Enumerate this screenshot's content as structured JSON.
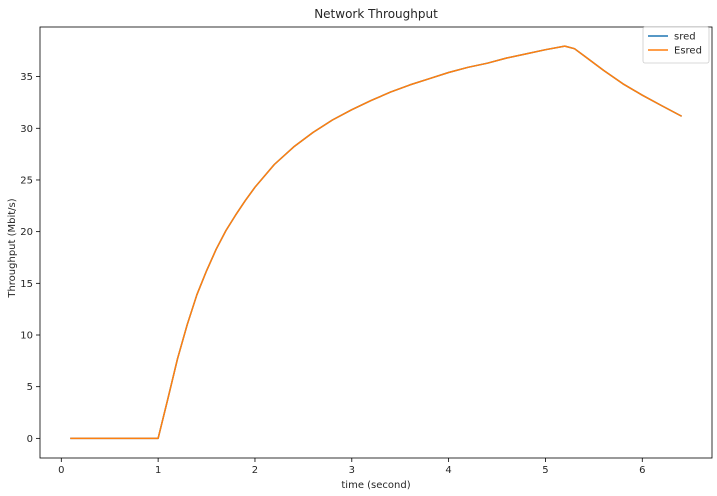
{
  "chart_data": {
    "type": "line",
    "title": "Network Throughput",
    "xlabel": "time (second)",
    "ylabel": "Throughput (Mbit/s)",
    "xlim": [
      -0.22,
      6.72
    ],
    "ylim": [
      -1.9,
      39.8
    ],
    "xticks": [
      0,
      1,
      2,
      3,
      4,
      5,
      6
    ],
    "yticks": [
      0,
      5,
      10,
      15,
      20,
      25,
      30,
      35
    ],
    "grid": false,
    "legend_position": "top-right",
    "x": [
      0.1,
      0.3,
      0.5,
      0.7,
      0.9,
      1.0,
      1.1,
      1.2,
      1.3,
      1.4,
      1.5,
      1.6,
      1.7,
      1.8,
      1.9,
      2.0,
      2.2,
      2.4,
      2.6,
      2.8,
      3.0,
      3.2,
      3.4,
      3.6,
      3.8,
      4.0,
      4.2,
      4.4,
      4.6,
      4.8,
      5.0,
      5.2,
      5.3,
      5.4,
      5.6,
      5.8,
      6.0,
      6.2,
      6.4
    ],
    "series": [
      {
        "name": "sred",
        "color": "#1f77b4",
        "values": [
          0,
          0,
          0,
          0,
          0,
          0,
          3.8,
          7.7,
          11.0,
          13.9,
          16.2,
          18.3,
          20.1,
          21.6,
          23.0,
          24.3,
          26.5,
          28.2,
          29.6,
          30.8,
          31.8,
          32.7,
          33.5,
          34.2,
          34.8,
          35.4,
          35.9,
          36.3,
          36.8,
          37.2,
          37.6,
          37.95,
          37.7,
          37.0,
          35.6,
          34.3,
          33.2,
          32.2,
          31.2
        ]
      },
      {
        "name": "Esred",
        "color": "#ff7f0e",
        "values": [
          0,
          0,
          0,
          0,
          0,
          0,
          3.8,
          7.7,
          11.0,
          13.9,
          16.2,
          18.3,
          20.1,
          21.6,
          23.0,
          24.3,
          26.5,
          28.2,
          29.6,
          30.8,
          31.8,
          32.7,
          33.5,
          34.2,
          34.8,
          35.4,
          35.9,
          36.3,
          36.8,
          37.2,
          37.6,
          37.95,
          37.7,
          37.0,
          35.6,
          34.3,
          33.2,
          32.2,
          31.2
        ]
      }
    ]
  }
}
